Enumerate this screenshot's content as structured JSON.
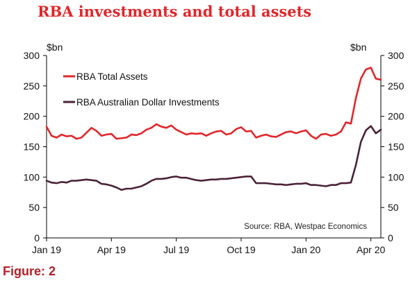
{
  "title": "RBA investments and total assets",
  "figure_label": "Figure: 2",
  "chart_data": {
    "type": "line",
    "title": "RBA investments and total assets",
    "y_unit_left": "$bn",
    "y_unit_right": "$bn",
    "ylim": [
      0,
      300
    ],
    "y_ticks": [
      "0",
      "50",
      "100",
      "150",
      "200",
      "250",
      "300"
    ],
    "y_tick_values": [
      0,
      50,
      100,
      150,
      200,
      250,
      300
    ],
    "x_range": [
      0,
      67
    ],
    "x_ticks": [
      {
        "label": "Jan 19",
        "x": 0
      },
      {
        "label": "Apr 19",
        "x": 13
      },
      {
        "label": "Jul 19",
        "x": 26
      },
      {
        "label": "Oct 19",
        "x": 39
      },
      {
        "label": "Jan 20",
        "x": 52
      },
      {
        "label": "Apr 20",
        "x": 65
      }
    ],
    "source": "Source: RBA, Westpac Economics",
    "grid": false,
    "legend_position": "top-left",
    "series": [
      {
        "name": "RBA Total Assets",
        "color": "#e3262a",
        "values": [
          183,
          168,
          165,
          170,
          167,
          168,
          163,
          165,
          173,
          181,
          176,
          168,
          170,
          171,
          163,
          164,
          165,
          170,
          169,
          172,
          178,
          181,
          187,
          183,
          181,
          185,
          178,
          174,
          170,
          172,
          171,
          172,
          168,
          172,
          175,
          176,
          170,
          172,
          179,
          182,
          175,
          176,
          165,
          168,
          170,
          167,
          166,
          170,
          174,
          175,
          172,
          175,
          177,
          168,
          163,
          170,
          171,
          168,
          170,
          175,
          190,
          188,
          230,
          262,
          277,
          280,
          262,
          260
        ]
      },
      {
        "name": "RBA Australian Dollar Investments",
        "color": "#4a2238",
        "values": [
          94,
          91,
          90,
          92,
          91,
          94,
          94,
          95,
          96,
          95,
          94,
          89,
          88,
          86,
          83,
          79,
          81,
          81,
          83,
          85,
          89,
          94,
          97,
          97,
          98,
          100,
          101,
          99,
          99,
          97,
          95,
          94,
          95,
          96,
          96,
          97,
          97,
          98,
          99,
          100,
          101,
          101,
          90,
          90,
          90,
          89,
          88,
          88,
          87,
          88,
          89,
          89,
          90,
          87,
          87,
          86,
          85,
          87,
          87,
          90,
          90,
          91,
          120,
          158,
          177,
          184,
          172,
          178
        ]
      }
    ]
  }
}
